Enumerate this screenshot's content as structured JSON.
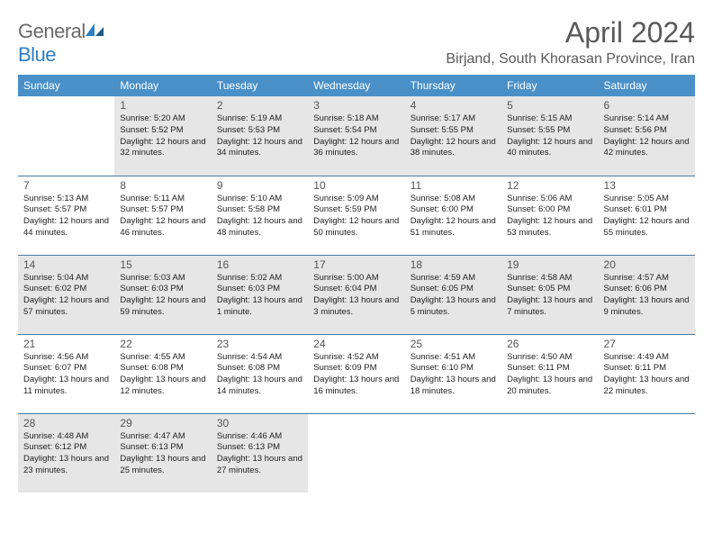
{
  "logo": {
    "part1": "General",
    "part2": "Blue"
  },
  "title": "April 2024",
  "location": "Birjand, South Khorasan Province, Iran",
  "colors": {
    "header_bg": "#4a90c8",
    "header_text": "#ffffff",
    "border": "#4a7aa3",
    "shade": "#e6e6e6",
    "text": "#333333",
    "title_color": "#5a5a5a"
  },
  "dayHeaders": [
    "Sunday",
    "Monday",
    "Tuesday",
    "Wednesday",
    "Thursday",
    "Friday",
    "Saturday"
  ],
  "weeks": [
    [
      {
        "n": "",
        "sr": "",
        "ss": "",
        "dl": "",
        "shade": false
      },
      {
        "n": "1",
        "sr": "Sunrise: 5:20 AM",
        "ss": "Sunset: 5:52 PM",
        "dl": "Daylight: 12 hours and 32 minutes.",
        "shade": true
      },
      {
        "n": "2",
        "sr": "Sunrise: 5:19 AM",
        "ss": "Sunset: 5:53 PM",
        "dl": "Daylight: 12 hours and 34 minutes.",
        "shade": true
      },
      {
        "n": "3",
        "sr": "Sunrise: 5:18 AM",
        "ss": "Sunset: 5:54 PM",
        "dl": "Daylight: 12 hours and 36 minutes.",
        "shade": true
      },
      {
        "n": "4",
        "sr": "Sunrise: 5:17 AM",
        "ss": "Sunset: 5:55 PM",
        "dl": "Daylight: 12 hours and 38 minutes.",
        "shade": true
      },
      {
        "n": "5",
        "sr": "Sunrise: 5:15 AM",
        "ss": "Sunset: 5:55 PM",
        "dl": "Daylight: 12 hours and 40 minutes.",
        "shade": true
      },
      {
        "n": "6",
        "sr": "Sunrise: 5:14 AM",
        "ss": "Sunset: 5:56 PM",
        "dl": "Daylight: 12 hours and 42 minutes.",
        "shade": true
      }
    ],
    [
      {
        "n": "7",
        "sr": "Sunrise: 5:13 AM",
        "ss": "Sunset: 5:57 PM",
        "dl": "Daylight: 12 hours and 44 minutes.",
        "shade": false
      },
      {
        "n": "8",
        "sr": "Sunrise: 5:11 AM",
        "ss": "Sunset: 5:57 PM",
        "dl": "Daylight: 12 hours and 46 minutes.",
        "shade": false
      },
      {
        "n": "9",
        "sr": "Sunrise: 5:10 AM",
        "ss": "Sunset: 5:58 PM",
        "dl": "Daylight: 12 hours and 48 minutes.",
        "shade": false
      },
      {
        "n": "10",
        "sr": "Sunrise: 5:09 AM",
        "ss": "Sunset: 5:59 PM",
        "dl": "Daylight: 12 hours and 50 minutes.",
        "shade": false
      },
      {
        "n": "11",
        "sr": "Sunrise: 5:08 AM",
        "ss": "Sunset: 6:00 PM",
        "dl": "Daylight: 12 hours and 51 minutes.",
        "shade": false
      },
      {
        "n": "12",
        "sr": "Sunrise: 5:06 AM",
        "ss": "Sunset: 6:00 PM",
        "dl": "Daylight: 12 hours and 53 minutes.",
        "shade": false
      },
      {
        "n": "13",
        "sr": "Sunrise: 5:05 AM",
        "ss": "Sunset: 6:01 PM",
        "dl": "Daylight: 12 hours and 55 minutes.",
        "shade": false
      }
    ],
    [
      {
        "n": "14",
        "sr": "Sunrise: 5:04 AM",
        "ss": "Sunset: 6:02 PM",
        "dl": "Daylight: 12 hours and 57 minutes.",
        "shade": true
      },
      {
        "n": "15",
        "sr": "Sunrise: 5:03 AM",
        "ss": "Sunset: 6:03 PM",
        "dl": "Daylight: 12 hours and 59 minutes.",
        "shade": true
      },
      {
        "n": "16",
        "sr": "Sunrise: 5:02 AM",
        "ss": "Sunset: 6:03 PM",
        "dl": "Daylight: 13 hours and 1 minute.",
        "shade": true
      },
      {
        "n": "17",
        "sr": "Sunrise: 5:00 AM",
        "ss": "Sunset: 6:04 PM",
        "dl": "Daylight: 13 hours and 3 minutes.",
        "shade": true
      },
      {
        "n": "18",
        "sr": "Sunrise: 4:59 AM",
        "ss": "Sunset: 6:05 PM",
        "dl": "Daylight: 13 hours and 5 minutes.",
        "shade": true
      },
      {
        "n": "19",
        "sr": "Sunrise: 4:58 AM",
        "ss": "Sunset: 6:05 PM",
        "dl": "Daylight: 13 hours and 7 minutes.",
        "shade": true
      },
      {
        "n": "20",
        "sr": "Sunrise: 4:57 AM",
        "ss": "Sunset: 6:06 PM",
        "dl": "Daylight: 13 hours and 9 minutes.",
        "shade": true
      }
    ],
    [
      {
        "n": "21",
        "sr": "Sunrise: 4:56 AM",
        "ss": "Sunset: 6:07 PM",
        "dl": "Daylight: 13 hours and 11 minutes.",
        "shade": false
      },
      {
        "n": "22",
        "sr": "Sunrise: 4:55 AM",
        "ss": "Sunset: 6:08 PM",
        "dl": "Daylight: 13 hours and 12 minutes.",
        "shade": false
      },
      {
        "n": "23",
        "sr": "Sunrise: 4:54 AM",
        "ss": "Sunset: 6:08 PM",
        "dl": "Daylight: 13 hours and 14 minutes.",
        "shade": false
      },
      {
        "n": "24",
        "sr": "Sunrise: 4:52 AM",
        "ss": "Sunset: 6:09 PM",
        "dl": "Daylight: 13 hours and 16 minutes.",
        "shade": false
      },
      {
        "n": "25",
        "sr": "Sunrise: 4:51 AM",
        "ss": "Sunset: 6:10 PM",
        "dl": "Daylight: 13 hours and 18 minutes.",
        "shade": false
      },
      {
        "n": "26",
        "sr": "Sunrise: 4:50 AM",
        "ss": "Sunset: 6:11 PM",
        "dl": "Daylight: 13 hours and 20 minutes.",
        "shade": false
      },
      {
        "n": "27",
        "sr": "Sunrise: 4:49 AM",
        "ss": "Sunset: 6:11 PM",
        "dl": "Daylight: 13 hours and 22 minutes.",
        "shade": false
      }
    ],
    [
      {
        "n": "28",
        "sr": "Sunrise: 4:48 AM",
        "ss": "Sunset: 6:12 PM",
        "dl": "Daylight: 13 hours and 23 minutes.",
        "shade": true
      },
      {
        "n": "29",
        "sr": "Sunrise: 4:47 AM",
        "ss": "Sunset: 6:13 PM",
        "dl": "Daylight: 13 hours and 25 minutes.",
        "shade": true
      },
      {
        "n": "30",
        "sr": "Sunrise: 4:46 AM",
        "ss": "Sunset: 6:13 PM",
        "dl": "Daylight: 13 hours and 27 minutes.",
        "shade": true
      },
      {
        "n": "",
        "sr": "",
        "ss": "",
        "dl": "",
        "shade": false
      },
      {
        "n": "",
        "sr": "",
        "ss": "",
        "dl": "",
        "shade": false
      },
      {
        "n": "",
        "sr": "",
        "ss": "",
        "dl": "",
        "shade": false
      },
      {
        "n": "",
        "sr": "",
        "ss": "",
        "dl": "",
        "shade": false
      }
    ]
  ]
}
